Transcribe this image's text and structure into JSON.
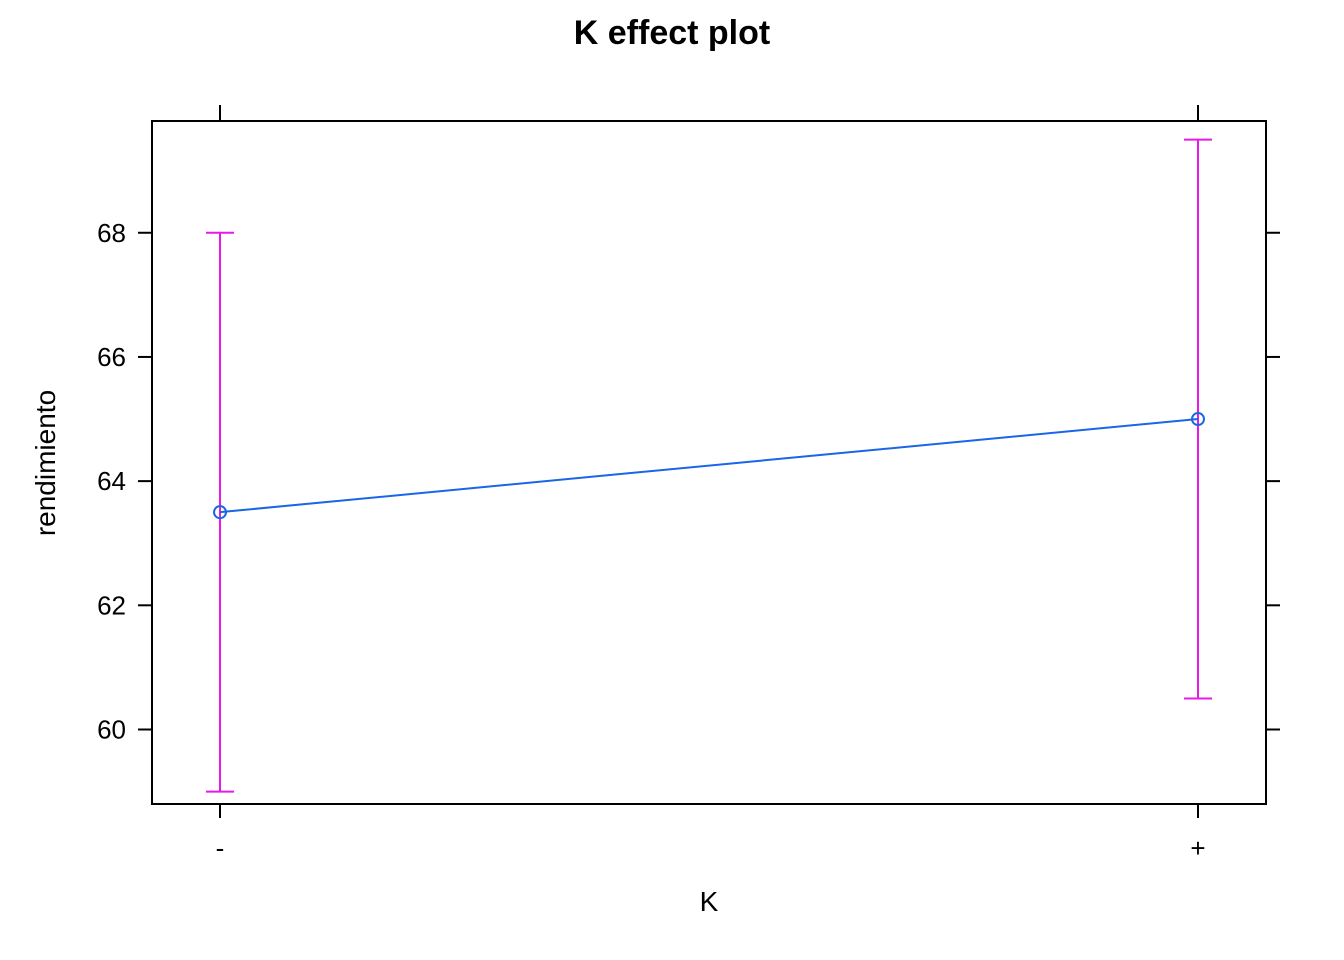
{
  "chart_data": {
    "type": "line",
    "title": "K effect plot",
    "xlabel": "K",
    "ylabel": "rendimiento",
    "categories": [
      "-",
      "+"
    ],
    "series": [
      {
        "values": [
          63.5,
          65.0
        ],
        "lower": [
          59.0,
          60.5
        ],
        "upper": [
          68.0,
          69.5
        ],
        "color": "#1a66e6",
        "error_color": "#e619e6"
      }
    ],
    "ylim": [
      58.8,
      69.8
    ],
    "yticks": [
      60,
      62,
      64,
      66,
      68
    ],
    "grid": false
  }
}
